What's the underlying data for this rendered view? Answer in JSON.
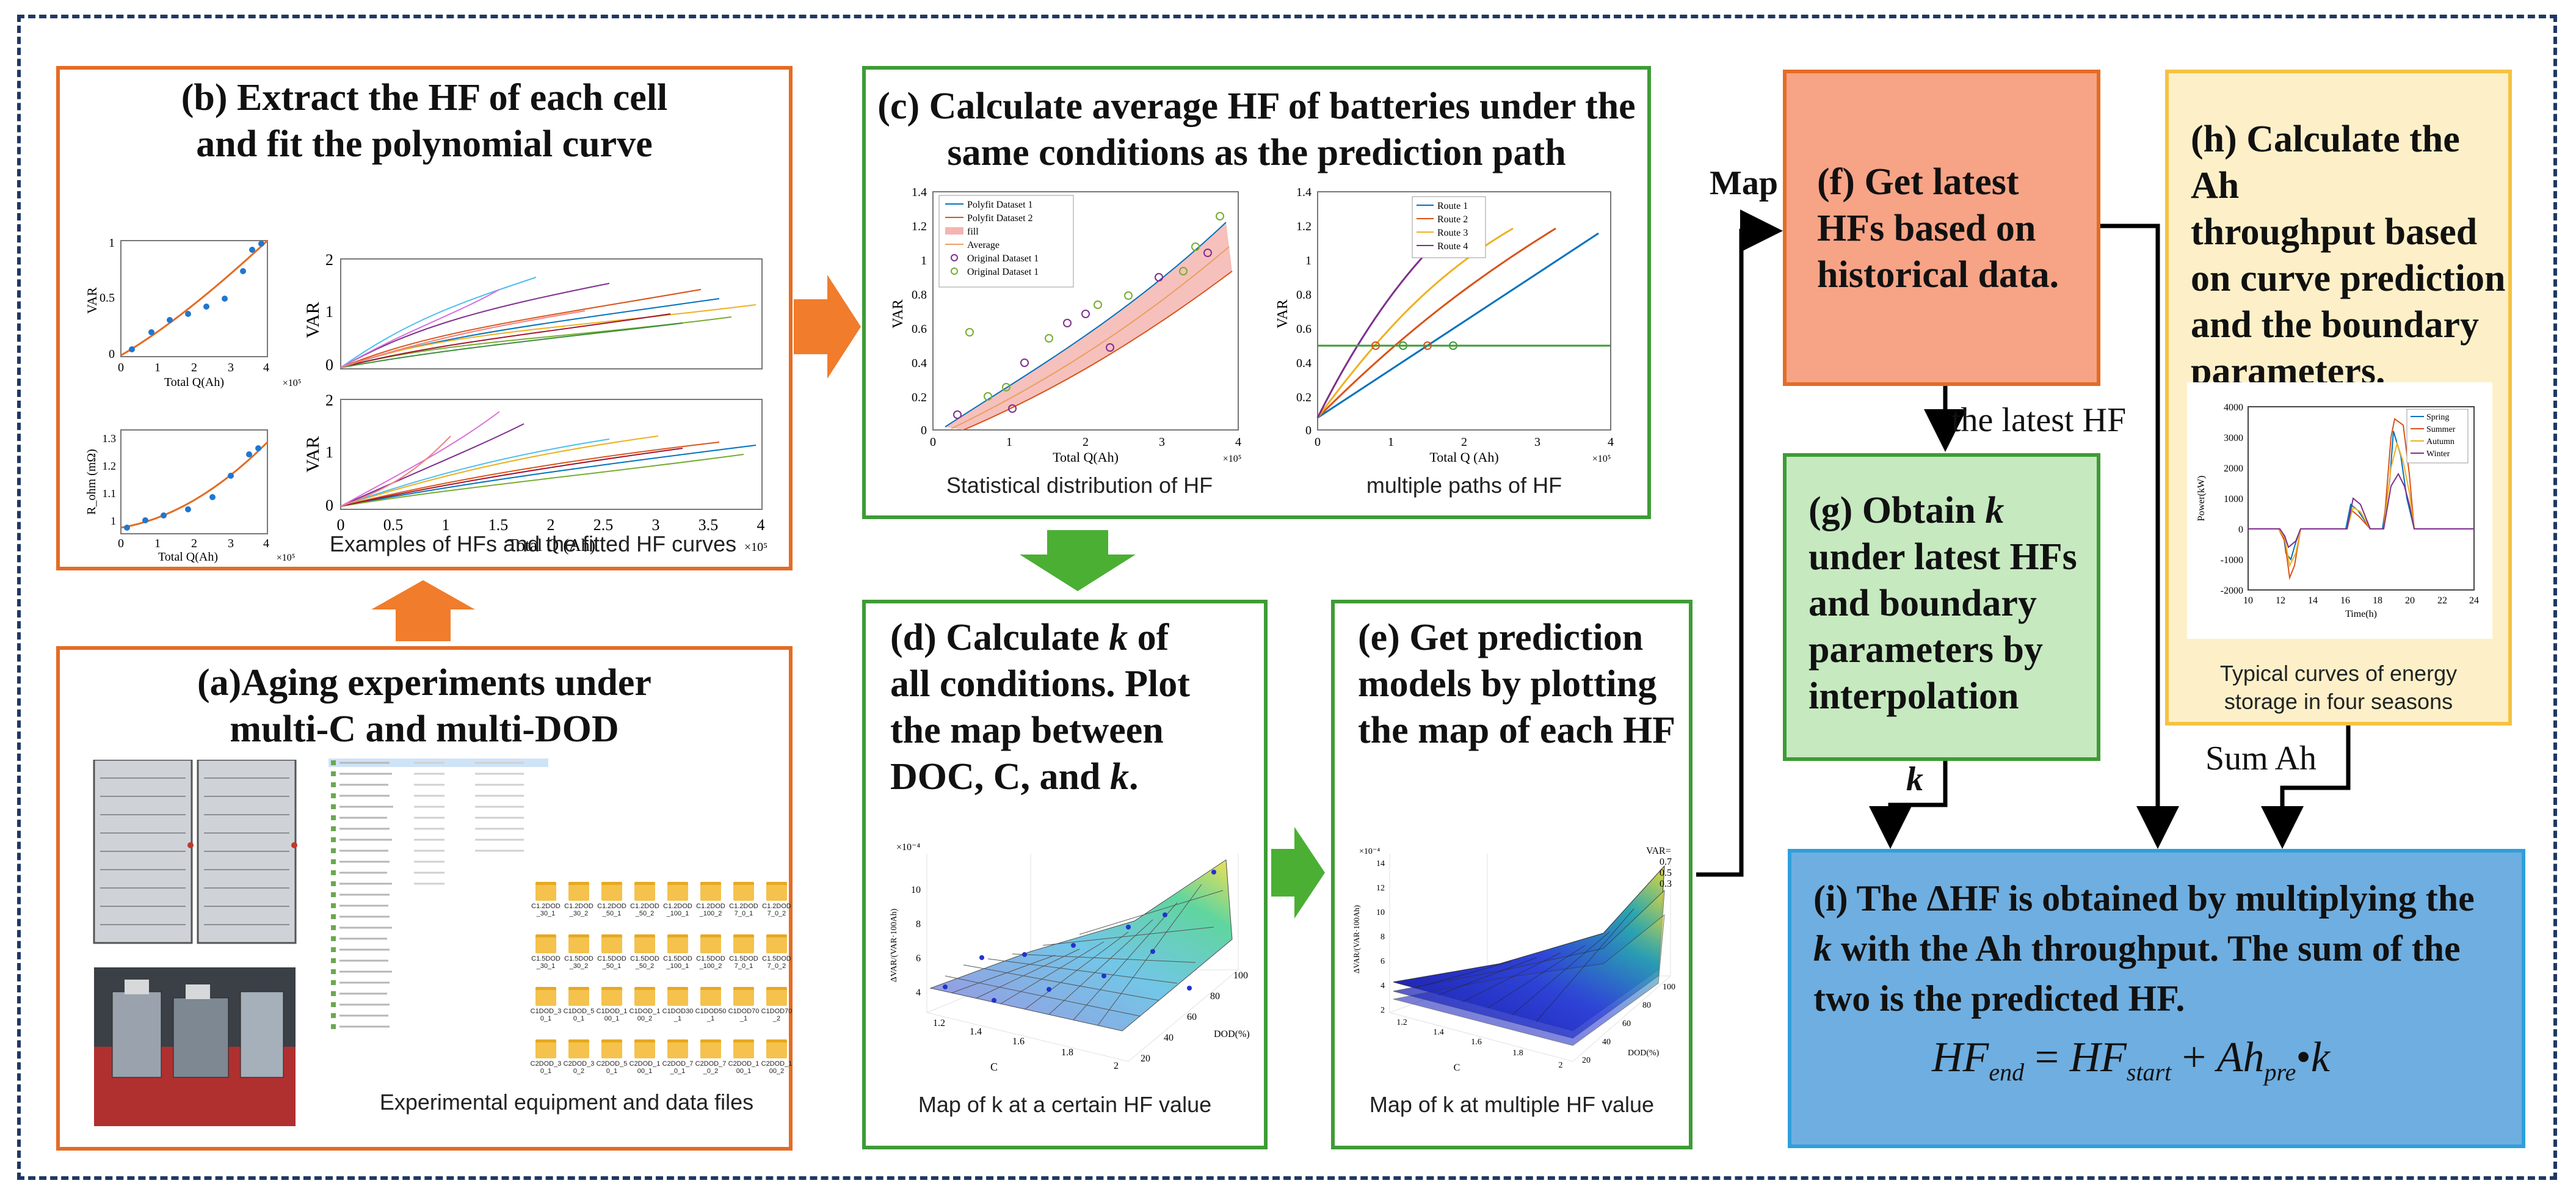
{
  "panels": {
    "b": {
      "title_line1": "(b) Extract the HF of each cell",
      "title_line2": "and fit the polynomial curve",
      "caption": "Examples of HFs and the fitted HF curves",
      "small_top": {
        "ylabel": "VAR",
        "xlabel": "Total Q(Ah)",
        "exp": "×10⁵",
        "yticks": [
          "1",
          "0.5",
          "0"
        ],
        "xticks": [
          "0",
          "1",
          "2",
          "3",
          "4"
        ]
      },
      "small_bottom": {
        "ylabel": "R_ohm (mΩ)",
        "xlabel": "Total Q(Ah)",
        "exp": "×10⁵",
        "yticks": [
          "1.3",
          "1.2",
          "1.1",
          "1"
        ],
        "xticks": [
          "0",
          "1",
          "2",
          "3",
          "4"
        ]
      },
      "big_top": {
        "ylabel": "VAR",
        "yticks": [
          "2",
          "1",
          "0"
        ]
      },
      "big_bottom": {
        "ylabel": "VAR",
        "yticks": [
          "2",
          "1",
          "0"
        ],
        "xlabel": "Total Q (Ah)",
        "exp": "×10⁵",
        "xticks": [
          "0",
          "0.5",
          "1",
          "1.5",
          "2",
          "2.5",
          "3",
          "3.5",
          "4"
        ]
      }
    },
    "a": {
      "title_line1": "(a)Aging experiments under",
      "title_line2": "multi-C and multi-DOD",
      "caption": "Experimental equipment and data files",
      "folders": [
        "C1.2DOD_30_1",
        "C1.2DOD_30_2",
        "C1.2DOD_50_1",
        "C1.2DOD_50_2",
        "C1.2DOD_100_1",
        "C1.2DOD_100_2",
        "C1.2DOD7_0_1",
        "C1.2DOD7_0_2",
        "C1.5DOD_30_1",
        "C1.5DOD_30_2",
        "C1.5DOD_50_1",
        "C1.5DOD_50_2",
        "C1.5DOD_100_1",
        "C1.5DOD_100_2",
        "C1.5DOD7_0_1",
        "C1.5DOD7_0_2",
        "C1DOD_30_1",
        "C1DOD_50_1",
        "C1DOD_100_1",
        "C1DOD_100_2",
        "C1DOD30_1",
        "C1DOD50_1",
        "C1DOD70_1",
        "C1DOD70_2",
        "C2DOD_30_1",
        "C2DOD_30_2",
        "C2DOD_50_1",
        "C2DOD_100_1",
        "C2DOD_7_0_1",
        "C2DOD_7_0_2",
        "C2DOD_100_1",
        "C2DOD_100_2"
      ]
    },
    "c": {
      "title_line1": "(c) Calculate average HF of batteries under the",
      "title_line2": "same conditions as the prediction path",
      "caption_left": "Statistical distribution of HF",
      "caption_right": "multiple paths of HF",
      "left": {
        "ylabel": "VAR",
        "xlabel": "Total Q(Ah)",
        "exp": "×10⁵",
        "yticks": [
          "1.4",
          "1.2",
          "1",
          "0.8",
          "0.6",
          "0.4",
          "0.2",
          "0"
        ],
        "xticks": [
          "0",
          "1",
          "2",
          "3",
          "4"
        ],
        "legend": [
          "Polyfit Dataset 1",
          "Polyfit Dataset 2",
          "fill",
          "Average",
          "Original Dataset 1",
          "Original Dataset 1"
        ]
      },
      "right": {
        "ylabel": "VAR",
        "xlabel": "Total Q (Ah)",
        "exp": "×10⁵",
        "yticks": [
          "1.4",
          "1.2",
          "1",
          "0.8",
          "0.6",
          "0.4",
          "0.2",
          "0"
        ],
        "xticks": [
          "0",
          "1",
          "2",
          "3",
          "4"
        ],
        "legend": [
          "Route 1",
          "Route 2",
          "Route 3",
          "Route 4"
        ]
      }
    },
    "d": {
      "title_line1": "(d) Calculate ",
      "title_k": "k",
      "title_line1b": " of",
      "title_line2": "all conditions. Plot",
      "title_line3": "the map between",
      "title_line4a": "DOC, C, and ",
      "title_line4k": "k",
      "title_line4b": ".",
      "caption": "Map of k at a certain HF value",
      "zlabel": "ΔVAR/(VAR·100Ah)",
      "xlabel": "C",
      "ylabel": "DOD(%)",
      "exp": "×10⁻⁴",
      "zticks": [
        "10",
        "8",
        "6",
        "4"
      ],
      "xticks": [
        "1.2",
        "1.4",
        "1.6",
        "1.8",
        "2"
      ],
      "yticks": [
        "20",
        "40",
        "60",
        "80",
        "100"
      ]
    },
    "e": {
      "title_line1": "(e) Get prediction",
      "title_line2": "models by plotting",
      "title_line3": "the map of each HF",
      "caption": "Map of k at multiple HF value",
      "zlabel": "ΔVAR/(VAR·100Ah)",
      "xlabel": "C",
      "ylabel": "DOD(%)",
      "exp": "×10⁻⁴",
      "zticks": [
        "14",
        "12",
        "10",
        "8",
        "6",
        "4",
        "2"
      ],
      "xticks": [
        "1.2",
        "1.4",
        "1.6",
        "1.8",
        "2"
      ],
      "yticks": [
        "20",
        "40",
        "60",
        "80",
        "100"
      ],
      "legend_title": "VAR=",
      "legend": [
        "0.7",
        "0.5",
        "0.3"
      ]
    },
    "f": {
      "title_line1": "(f) Get latest",
      "title_line2": "HFs based on",
      "title_line3": "historical data."
    },
    "g": {
      "title_line1a": "(g) Obtain ",
      "title_k": "k",
      "title_line2": "under latest HFs",
      "title_line3": "and boundary",
      "title_line4": "parameters by",
      "title_line5": "interpolation"
    },
    "h": {
      "title_line1": "(h) Calculate the Ah",
      "title_line2": "throughput based",
      "title_line3": "on curve prediction",
      "title_line4": "and the boundary",
      "title_line5": "parameters.",
      "caption_line1": "Typical curves of energy",
      "caption_line2": "storage in four seasons",
      "ylabel": "Power(kW)",
      "xlabel": "Time(h)",
      "yticks": [
        "4000",
        "3000",
        "2000",
        "1000",
        "0",
        "-1000",
        "-2000"
      ],
      "xticks": [
        "10",
        "12",
        "14",
        "16",
        "18",
        "20",
        "22",
        "24"
      ],
      "legend": [
        "Spring",
        "Summer",
        "Autumn",
        "Winter"
      ]
    },
    "i": {
      "line1": "(i) The ΔHF is obtained by multiplying the",
      "line2k": "k",
      "line2": " with the Ah throughput. The sum of the",
      "line3": "two is the predicted HF.",
      "eq_hf": "HF",
      "eq_end": "end",
      "eq_eq": " = ",
      "eq_start": "start",
      "eq_plus": " + ",
      "eq_ah": "Ah",
      "eq_pre": "pre",
      "eq_dot": "•",
      "eq_k": "k"
    }
  },
  "arrows": {
    "map": "Map",
    "latest_hf": "the latest HF",
    "k": "k",
    "sum_ah": "Sum Ah"
  },
  "colors": {
    "orange_border": "#E36C25",
    "green_border": "#3E9B36",
    "yellow_border": "#F5C242",
    "blue_border": "#2F9FDB",
    "f_fill": "#F7A386",
    "g_fill": "#C6E9C0",
    "h_fill": "#FDF0C8",
    "i_fill": "#6FAEE0",
    "frame": "#1F3864",
    "series": [
      "#0072BD",
      "#D95319",
      "#EDB120",
      "#7E2F8E",
      "#77AC30",
      "#4DBEEE",
      "#A2142F"
    ]
  }
}
